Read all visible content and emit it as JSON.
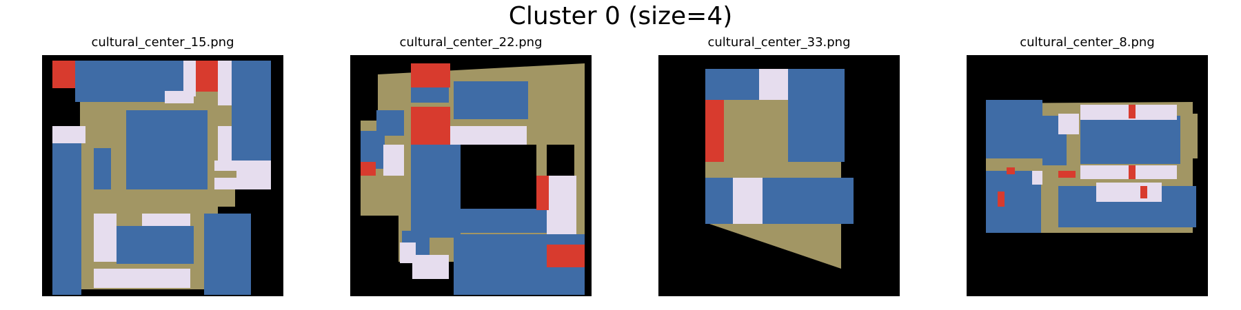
{
  "figure": {
    "title": "Cluster 0 (size=4)"
  },
  "colors": {
    "background": "#000000",
    "corridor": "#A29664",
    "room": "#3F6CA6",
    "light": "#E6DDEE",
    "accent": "#D83B2E"
  },
  "panels": [
    {
      "title": "cultural_center_15.png"
    },
    {
      "title": "cultural_center_22.png"
    },
    {
      "title": "cultural_center_33.png"
    },
    {
      "title": "cultural_center_8.png"
    }
  ]
}
